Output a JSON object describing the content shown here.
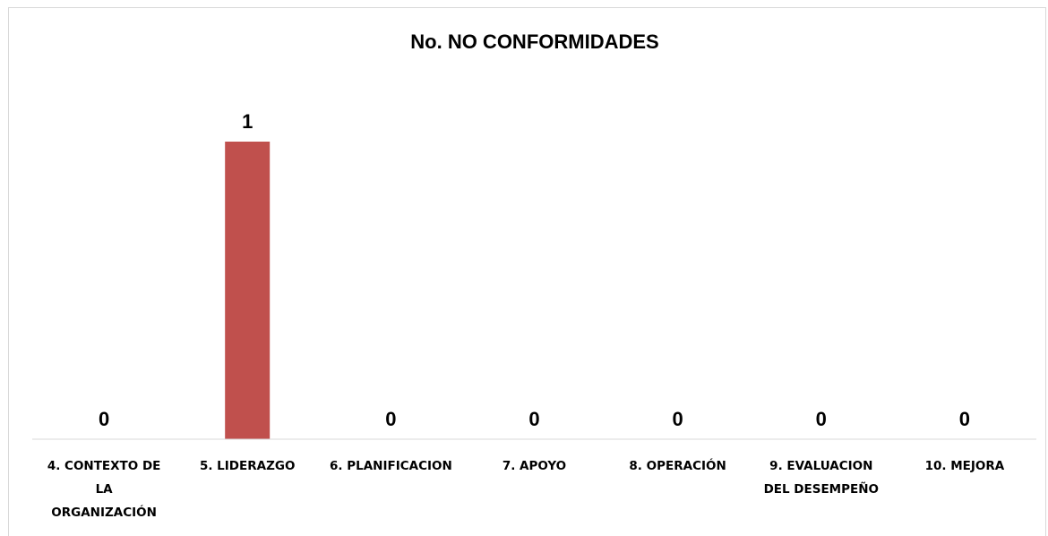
{
  "chart_data": {
    "type": "bar",
    "title": "No. NO CONFORMIDADES",
    "categories": [
      [
        "4. CONTEXTO DE",
        "LA",
        "ORGANIZACIÓN"
      ],
      [
        "5. LIDERAZGO"
      ],
      [
        "6. PLANIFICACION"
      ],
      [
        "7. APOYO"
      ],
      [
        "8. OPERACIÓN"
      ],
      [
        "9. EVALUACION",
        "DEL DESEMPEÑO"
      ],
      [
        "10. MEJORA"
      ]
    ],
    "values": [
      0,
      1,
      0,
      0,
      0,
      0,
      0
    ],
    "value_labels": [
      "0",
      "1",
      "0",
      "0",
      "0",
      "0",
      "0"
    ],
    "ylim": [
      0,
      1
    ],
    "xlabel": "",
    "ylabel": "",
    "grid": false,
    "legend": "none",
    "bar_color": "#c0504d",
    "axis_color": "#d9d9d9"
  }
}
